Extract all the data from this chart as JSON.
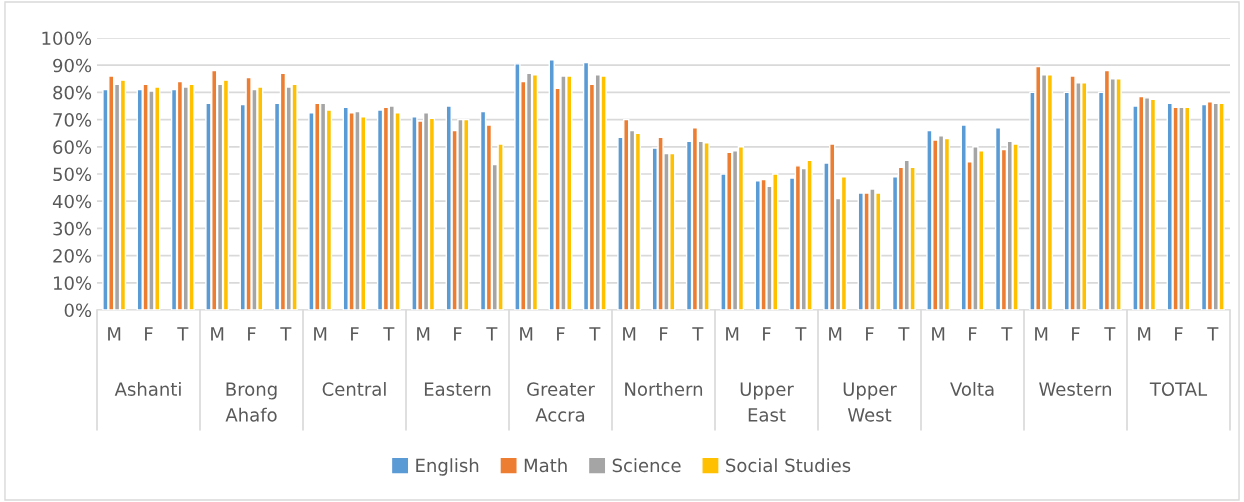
{
  "chart_data": {
    "type": "bar",
    "categories": [
      "M",
      "F",
      "T",
      "M",
      "F",
      "T",
      "M",
      "F",
      "T",
      "M",
      "F",
      "T",
      "M",
      "F",
      "T",
      "M",
      "F",
      "T",
      "M",
      "F",
      "T",
      "M",
      "F",
      "T",
      "M",
      "F",
      "T",
      "M",
      "F",
      "T",
      "M",
      "F",
      "T"
    ],
    "annotations": [
      "Ashanti",
      "Brong Ahafo",
      "Central",
      "Eastern",
      "Greater Accra",
      "Northern",
      "Upper East",
      "Upper West",
      "Volta",
      "Western",
      "TOTAL"
    ],
    "series": [
      {
        "name": "English",
        "color": "#5b9bd5",
        "values": [
          0.81,
          0.81,
          0.81,
          0.76,
          0.755,
          0.76,
          0.725,
          0.745,
          0.735,
          0.71,
          0.75,
          0.73,
          0.905,
          0.92,
          0.91,
          0.635,
          0.595,
          0.62,
          0.5,
          0.475,
          0.485,
          0.54,
          0.43,
          0.49,
          0.66,
          0.68,
          0.67,
          0.8,
          0.8,
          0.8,
          0.75,
          0.76,
          0.755
        ]
      },
      {
        "name": "Math",
        "color": "#ed7d31",
        "values": [
          0.86,
          0.83,
          0.84,
          0.88,
          0.855,
          0.87,
          0.76,
          0.725,
          0.745,
          0.695,
          0.66,
          0.68,
          0.84,
          0.815,
          0.83,
          0.7,
          0.635,
          0.67,
          0.58,
          0.48,
          0.53,
          0.61,
          0.43,
          0.525,
          0.625,
          0.545,
          0.59,
          0.895,
          0.86,
          0.88,
          0.785,
          0.745,
          0.765
        ]
      },
      {
        "name": "Science",
        "color": "#a5a5a5",
        "values": [
          0.83,
          0.805,
          0.82,
          0.83,
          0.81,
          0.82,
          0.76,
          0.73,
          0.75,
          0.725,
          0.7,
          0.535,
          0.87,
          0.86,
          0.865,
          0.66,
          0.575,
          0.62,
          0.585,
          0.455,
          0.52,
          0.41,
          0.445,
          0.55,
          0.64,
          0.6,
          0.62,
          0.865,
          0.835,
          0.85,
          0.78,
          0.745,
          0.76
        ]
      },
      {
        "name": "Social Studies",
        "color": "#ffc000",
        "values": [
          0.845,
          0.82,
          0.83,
          0.845,
          0.82,
          0.83,
          0.735,
          0.71,
          0.725,
          0.705,
          0.7,
          0.61,
          0.865,
          0.86,
          0.86,
          0.65,
          0.575,
          0.615,
          0.6,
          0.5,
          0.55,
          0.49,
          0.43,
          0.525,
          0.63,
          0.585,
          0.61,
          0.865,
          0.835,
          0.85,
          0.775,
          0.745,
          0.76
        ]
      }
    ],
    "ylim": [
      0,
      1
    ],
    "yticks": [
      {
        "value": 0,
        "label": "0%"
      },
      {
        "value": 0.1,
        "label": "10%"
      },
      {
        "value": 0.2,
        "label": "20%"
      },
      {
        "value": 0.3,
        "label": "30%"
      },
      {
        "value": 0.4,
        "label": "40%"
      },
      {
        "value": 0.5,
        "label": "50%"
      },
      {
        "value": 0.6,
        "label": "60%"
      },
      {
        "value": 0.7,
        "label": "70%"
      },
      {
        "value": 0.8,
        "label": "80%"
      },
      {
        "value": 0.9,
        "label": "90%"
      },
      {
        "value": 1,
        "label": "100%"
      }
    ],
    "grid": "y",
    "legend": "bottom"
  }
}
